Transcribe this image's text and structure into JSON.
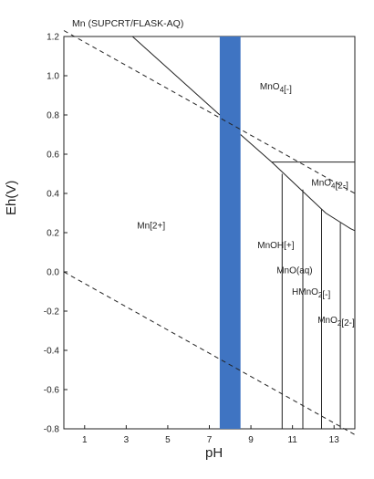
{
  "chart_data": {
    "type": "area",
    "title": "Mn (SUPCRT/FLASK-AQ)",
    "xlabel": "pH",
    "ylabel": "Eh(V)",
    "xlim": [
      0,
      14
    ],
    "ylim": [
      -0.8,
      1.2
    ],
    "x_ticks": [
      1,
      3,
      5,
      7,
      9,
      11,
      13
    ],
    "y_ticks": [
      -0.8,
      -0.6,
      -0.4,
      -0.2,
      0.0,
      0.2,
      0.4,
      0.6,
      0.8,
      1.0,
      1.2
    ],
    "y_tick_labels": [
      "-0.8",
      "-0.6",
      "-0.4",
      "-0.2",
      "0.0",
      "0.2",
      "0.4",
      "0.6",
      "0.8",
      "1.0",
      "1.2"
    ],
    "highlight_band": {
      "x_from": 7.5,
      "x_to": 8.5,
      "color": "#3f74c2"
    },
    "boundaries": [
      {
        "style": "solid",
        "points": [
          [
            3.3,
            1.2
          ],
          [
            7.5,
            0.8
          ]
        ]
      },
      {
        "style": "solid",
        "points": [
          [
            8.5,
            0.7
          ],
          [
            10.0,
            0.56
          ],
          [
            14,
            0.56
          ]
        ]
      },
      {
        "style": "solid",
        "points": [
          [
            10.0,
            0.56
          ],
          [
            11.6,
            0.4
          ],
          [
            12.6,
            0.3
          ],
          [
            13.8,
            0.22
          ],
          [
            14,
            0.21
          ]
        ]
      },
      {
        "style": "solid",
        "points": [
          [
            14,
            1.2
          ],
          [
            14,
            0.21
          ]
        ]
      },
      {
        "style": "solid",
        "points": [
          [
            10.5,
            0.5
          ],
          [
            10.5,
            -0.8
          ]
        ]
      },
      {
        "style": "solid",
        "points": [
          [
            11.5,
            0.42
          ],
          [
            11.5,
            -0.8
          ]
        ]
      },
      {
        "style": "solid",
        "points": [
          [
            12.4,
            0.32
          ],
          [
            12.4,
            -0.8
          ]
        ]
      },
      {
        "style": "solid",
        "points": [
          [
            13.3,
            0.25
          ],
          [
            13.3,
            -0.8
          ]
        ]
      },
      {
        "style": "dashed",
        "points": [
          [
            0,
            1.23
          ],
          [
            14,
            0.4
          ]
        ]
      },
      {
        "style": "dashed",
        "points": [
          [
            0,
            0.0
          ],
          [
            14,
            -0.83
          ]
        ]
      }
    ],
    "regions": [
      {
        "label": "MnO4[-]",
        "x": 10.2,
        "y": 0.93
      },
      {
        "label": "MnO4[2-]",
        "x": 12.8,
        "y": 0.44
      },
      {
        "label": "Mn[2+]",
        "x": 4.2,
        "y": 0.22
      },
      {
        "label": "MnOH[+]",
        "x": 10.2,
        "y": 0.12
      },
      {
        "label": "MnO(aq)",
        "x": 11.1,
        "y": -0.007
      },
      {
        "label": "HMnO2[-]",
        "x": 11.9,
        "y": -0.117
      },
      {
        "label": "MnO2[2-]",
        "x": 13.1,
        "y": -0.26
      }
    ]
  }
}
